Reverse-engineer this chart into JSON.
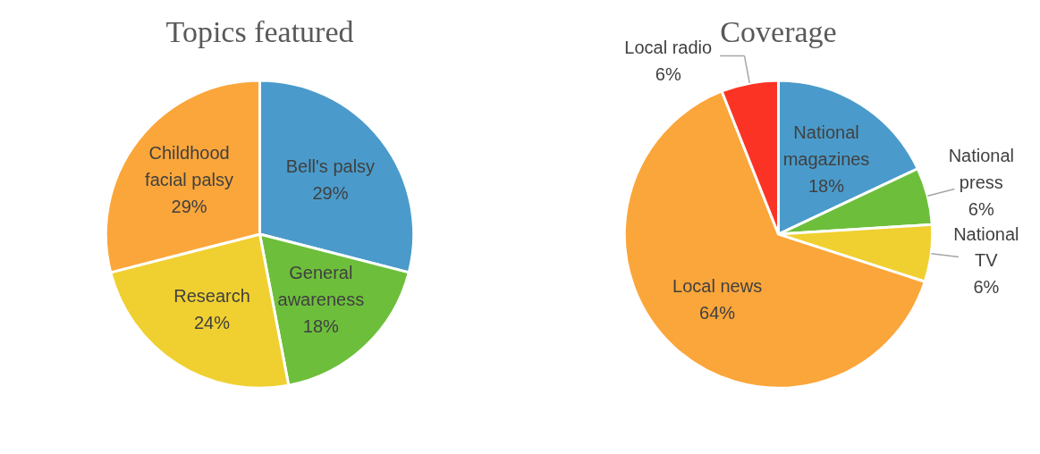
{
  "chart_data": [
    {
      "type": "pie",
      "title": "Topics featured",
      "categories": [
        "Bell's palsy",
        "General awareness",
        "Research",
        "Childhood facial palsy"
      ],
      "values": [
        29,
        18,
        24,
        29
      ],
      "value_labels": [
        "29%",
        "18%",
        "24%",
        "29%"
      ],
      "colors": [
        "#4a9bcb",
        "#6dbf3b",
        "#f0d030",
        "#fba63a"
      ]
    },
    {
      "type": "pie",
      "title": "Coverage",
      "categories": [
        "National magazines",
        "National press",
        "National TV",
        "Local news",
        "Local radio"
      ],
      "values": [
        18,
        6,
        6,
        64,
        6
      ],
      "value_labels": [
        "18%",
        "6%",
        "6%",
        "64%",
        "6%"
      ],
      "colors": [
        "#4a9bcb",
        "#6dbf3b",
        "#f0d030",
        "#fba63a",
        "#fb3325"
      ]
    }
  ]
}
